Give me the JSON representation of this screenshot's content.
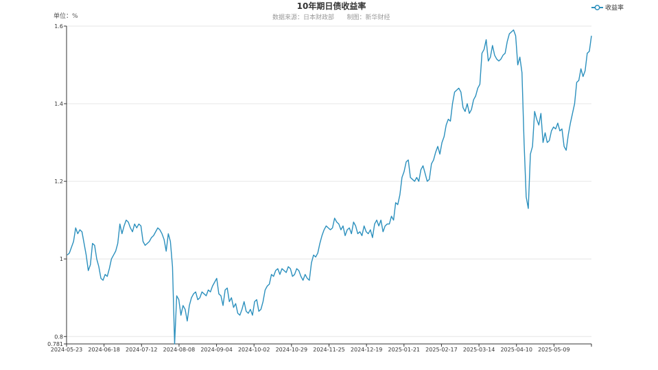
{
  "chart_data": {
    "type": "line",
    "title": "10年期日债收益率",
    "subtitle_source": "数据来源：日本财政部",
    "subtitle_producer": "制图：新华财经",
    "unit_label": "单位：%",
    "legend": {
      "position": "top-right",
      "entries": [
        "收益率"
      ]
    },
    "series": [
      {
        "name": "收益率",
        "color": "#2a8fbd",
        "values": [
          1.01,
          1.015,
          1.03,
          1.045,
          1.08,
          1.065,
          1.075,
          1.07,
          1.04,
          1.01,
          0.97,
          0.985,
          1.04,
          1.035,
          1.0,
          0.98,
          0.95,
          0.945,
          0.96,
          0.955,
          0.975,
          1.0,
          1.01,
          1.02,
          1.04,
          1.09,
          1.065,
          1.085,
          1.1,
          1.095,
          1.08,
          1.07,
          1.09,
          1.08,
          1.09,
          1.085,
          1.045,
          1.035,
          1.04,
          1.045,
          1.055,
          1.06,
          1.07,
          1.08,
          1.075,
          1.065,
          1.05,
          1.02,
          1.065,
          1.045,
          0.98,
          0.781,
          0.905,
          0.895,
          0.855,
          0.88,
          0.87,
          0.84,
          0.88,
          0.9,
          0.91,
          0.915,
          0.895,
          0.9,
          0.915,
          0.91,
          0.905,
          0.92,
          0.915,
          0.93,
          0.94,
          0.95,
          0.91,
          0.905,
          0.88,
          0.92,
          0.925,
          0.89,
          0.9,
          0.875,
          0.885,
          0.86,
          0.855,
          0.87,
          0.89,
          0.865,
          0.86,
          0.87,
          0.855,
          0.89,
          0.895,
          0.865,
          0.87,
          0.89,
          0.92,
          0.93,
          0.935,
          0.96,
          0.955,
          0.97,
          0.975,
          0.96,
          0.975,
          0.97,
          0.965,
          0.98,
          0.975,
          0.955,
          0.96,
          0.975,
          0.97,
          0.955,
          0.945,
          0.96,
          0.95,
          0.945,
          0.99,
          1.01,
          1.005,
          1.015,
          1.04,
          1.06,
          1.075,
          1.085,
          1.08,
          1.075,
          1.08,
          1.105,
          1.095,
          1.09,
          1.075,
          1.085,
          1.06,
          1.075,
          1.08,
          1.065,
          1.095,
          1.085,
          1.065,
          1.07,
          1.06,
          1.085,
          1.07,
          1.065,
          1.075,
          1.055,
          1.09,
          1.1,
          1.085,
          1.1,
          1.07,
          1.085,
          1.09,
          1.09,
          1.11,
          1.1,
          1.145,
          1.14,
          1.165,
          1.21,
          1.225,
          1.25,
          1.255,
          1.21,
          1.205,
          1.2,
          1.21,
          1.2,
          1.23,
          1.24,
          1.22,
          1.2,
          1.205,
          1.245,
          1.255,
          1.275,
          1.29,
          1.27,
          1.3,
          1.315,
          1.345,
          1.36,
          1.355,
          1.4,
          1.43,
          1.435,
          1.44,
          1.43,
          1.39,
          1.38,
          1.4,
          1.375,
          1.385,
          1.41,
          1.42,
          1.44,
          1.45,
          1.53,
          1.54,
          1.565,
          1.51,
          1.52,
          1.55,
          1.525,
          1.515,
          1.51,
          1.515,
          1.525,
          1.53,
          1.56,
          1.58,
          1.585,
          1.59,
          1.575,
          1.5,
          1.52,
          1.48,
          1.3,
          1.16,
          1.13,
          1.27,
          1.29,
          1.38,
          1.36,
          1.345,
          1.375,
          1.3,
          1.325,
          1.3,
          1.305,
          1.33,
          1.34,
          1.335,
          1.35,
          1.33,
          1.335,
          1.29,
          1.28,
          1.32,
          1.35,
          1.375,
          1.4,
          1.455,
          1.46,
          1.49,
          1.47,
          1.485,
          1.53,
          1.535,
          1.575
        ]
      }
    ],
    "x_tick_labels": [
      "2024-05-23",
      "2024-06-18",
      "2024-07-12",
      "2024-08-08",
      "2024-09-04",
      "2024-10-02",
      "2024-10-29",
      "2024-11-25",
      "2024-12-19",
      "2025-01-21",
      "2025-02-17",
      "2025-03-14",
      "2025-04-10",
      "2025-05-09"
    ],
    "y_tick_labels": [
      "0.781",
      "0.8",
      "1",
      "1.2",
      "1.4",
      "1.6"
    ],
    "y_ticks": [
      0.781,
      0.8,
      1.0,
      1.2,
      1.4,
      1.6
    ],
    "ylim": [
      0.781,
      1.6
    ],
    "grid": {
      "horizontal": true,
      "vertical": false
    }
  }
}
